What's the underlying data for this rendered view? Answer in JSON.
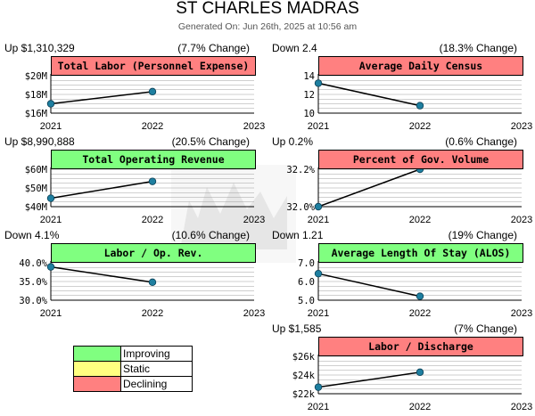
{
  "header": {
    "title": "ST CHARLES MADRAS",
    "subtitle": "Generated On: Jun 26th, 2025 at 10:56 am"
  },
  "colors": {
    "improving": "#80ff80",
    "static": "#ffff80",
    "declining": "#ff8080",
    "line": "#000000",
    "point": "#1e7fa0",
    "grid": "#a0a0a0"
  },
  "legend": {
    "items": [
      {
        "label": "Improving",
        "color": "#80ff80"
      },
      {
        "label": "Static",
        "color": "#ffff80"
      },
      {
        "label": "Declining",
        "color": "#ff8080"
      }
    ]
  },
  "chart_data": [
    {
      "type": "line",
      "title": "Total Labor (Personnel Expense)",
      "status": "declining",
      "summary": "Up $1,310,329",
      "change": "(7.7% Change)",
      "x": [
        "2021",
        "2022"
      ],
      "x_ticks": [
        "2021",
        "2022",
        "2023"
      ],
      "values": [
        17.0,
        18.3
      ],
      "ylim": [
        16,
        20
      ],
      "y_tick_values": [
        16,
        18,
        20
      ],
      "y_tick_labels": [
        "$16M",
        "$18M",
        "$20M"
      ]
    },
    {
      "type": "line",
      "title": "Average Daily Census",
      "status": "declining",
      "summary": "Down 2.4",
      "change": "(18.3% Change)",
      "x": [
        "2021",
        "2022"
      ],
      "x_ticks": [
        "2021",
        "2022",
        "2023"
      ],
      "values": [
        13.2,
        10.8
      ],
      "ylim": [
        10,
        14
      ],
      "y_tick_values": [
        10,
        12,
        14
      ],
      "y_tick_labels": [
        "10",
        "12",
        "14"
      ]
    },
    {
      "type": "line",
      "title": "Total Operating Revenue",
      "status": "improving",
      "summary": "Up $8,990,888",
      "change": "(20.5% Change)",
      "x": [
        "2021",
        "2022"
      ],
      "x_ticks": [
        "2021",
        "2022",
        "2023"
      ],
      "values": [
        44.5,
        53.5
      ],
      "ylim": [
        40,
        60
      ],
      "y_tick_values": [
        40,
        50,
        60
      ],
      "y_tick_labels": [
        "$40M",
        "$50M",
        "$60M"
      ]
    },
    {
      "type": "line",
      "title": "Percent of Gov. Volume",
      "status": "declining",
      "summary": "Up 0.2%",
      "change": "(0.6% Change)",
      "x": [
        "2021",
        "2022"
      ],
      "x_ticks": [
        "2021",
        "2022",
        "2023"
      ],
      "values": [
        32.0,
        32.2
      ],
      "ylim": [
        32.0,
        32.2
      ],
      "y_tick_values": [
        32.0,
        32.2
      ],
      "y_tick_labels": [
        "32.0%",
        "32.2%"
      ]
    },
    {
      "type": "line",
      "title": "Labor / Op. Rev.",
      "status": "improving",
      "summary": "Down 4.1%",
      "change": "(10.6% Change)",
      "x": [
        "2021",
        "2022"
      ],
      "x_ticks": [
        "2021",
        "2022",
        "2023"
      ],
      "values": [
        38.9,
        34.8
      ],
      "ylim": [
        30,
        40
      ],
      "y_tick_values": [
        30,
        35,
        40
      ],
      "y_tick_labels": [
        "30.0%",
        "35.0%",
        "40.0%"
      ]
    },
    {
      "type": "line",
      "title": "Average Length Of Stay (ALOS)",
      "status": "improving",
      "summary": "Down 1.21",
      "change": "(19% Change)",
      "x": [
        "2021",
        "2022"
      ],
      "x_ticks": [
        "2021",
        "2022",
        "2023"
      ],
      "values": [
        6.42,
        5.21
      ],
      "ylim": [
        5,
        7
      ],
      "y_tick_values": [
        5,
        6,
        7
      ],
      "y_tick_labels": [
        "5.0",
        "6.0",
        "7.0"
      ]
    },
    {
      "type": "line",
      "title": "Labor / Discharge",
      "status": "declining",
      "summary": "Up $1,585",
      "change": "(7% Change)",
      "x": [
        "2021",
        "2022"
      ],
      "x_ticks": [
        "2021",
        "2022",
        "2023"
      ],
      "values": [
        22.7,
        24.3
      ],
      "ylim": [
        22,
        26
      ],
      "y_tick_values": [
        22,
        24,
        26
      ],
      "y_tick_labels": [
        "$22k",
        "$24k",
        "$26k"
      ]
    }
  ]
}
